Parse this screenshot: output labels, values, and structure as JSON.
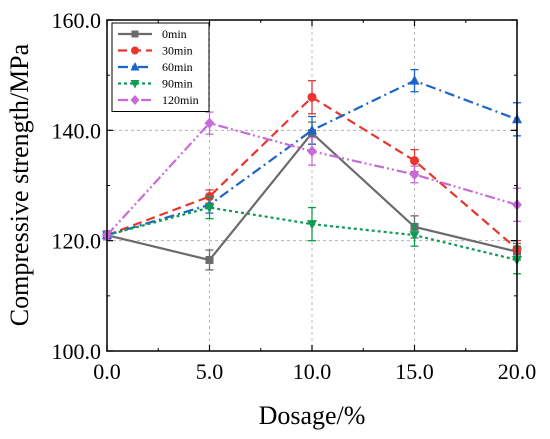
{
  "chart_data": {
    "type": "line",
    "title": "",
    "xlabel": "Dosage/%",
    "ylabel": "Compressive strength/MPa",
    "x": [
      0,
      5,
      10,
      15,
      20
    ],
    "xlim": [
      0,
      20
    ],
    "ylim": [
      100,
      160
    ],
    "x_ticks": [
      "0.0",
      "5.0",
      "10.0",
      "15.0",
      "20.0"
    ],
    "y_ticks": [
      "100.0",
      "120.0",
      "140.0",
      "160.0"
    ],
    "grid": true,
    "legend_position": "top-left",
    "series": [
      {
        "name": "0min",
        "color": "#6b6b6b",
        "dash": "solid",
        "marker": "square",
        "values": [
          121.0,
          116.5,
          139.5,
          122.5,
          118.0
        ],
        "errors": [
          0.8,
          1.8,
          2.0,
          2.0,
          1.5
        ]
      },
      {
        "name": "30min",
        "color": "#e8362f",
        "dash": "dash",
        "marker": "circle",
        "values": [
          121.0,
          128.0,
          146.0,
          134.5,
          118.5
        ],
        "errors": [
          0.8,
          1.2,
          3.0,
          2.0,
          1.5
        ]
      },
      {
        "name": "60min",
        "color": "#1c64c8",
        "dash": "dashdot",
        "marker": "triangle-up",
        "values": [
          121.0,
          126.5,
          140.0,
          149.0,
          142.0
        ],
        "errors": [
          0.8,
          1.5,
          2.5,
          2.0,
          3.0
        ]
      },
      {
        "name": "90min",
        "color": "#109b53",
        "dash": "dot",
        "marker": "triangle-down",
        "values": [
          121.0,
          126.0,
          123.0,
          121.0,
          116.5
        ],
        "errors": [
          0.8,
          2.0,
          3.0,
          2.0,
          2.5
        ]
      },
      {
        "name": "120min",
        "color": "#c86bd8",
        "dash": "dashdotdot",
        "marker": "diamond",
        "values": [
          121.0,
          141.3,
          136.2,
          132.0,
          126.5
        ],
        "errors": [
          0.8,
          2.0,
          2.5,
          1.5,
          3.0
        ]
      }
    ]
  }
}
